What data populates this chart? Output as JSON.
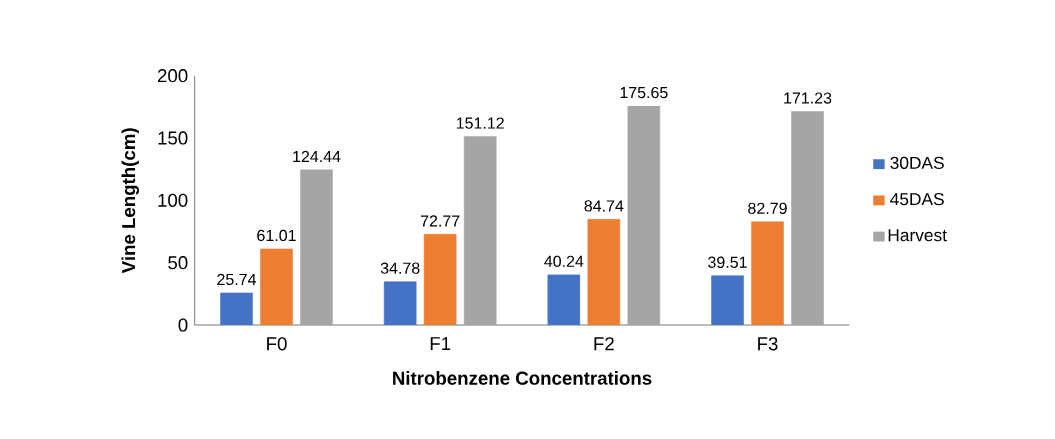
{
  "chart_data": {
    "type": "bar",
    "xlabel": "Nitrobenzene Concentrations",
    "ylabel": "Vine Length(cm)",
    "categories": [
      "F0",
      "F1",
      "F2",
      "F3"
    ],
    "series": [
      {
        "name": "30DAS",
        "color": "#4472c4",
        "values": [
          25.74,
          34.78,
          40.24,
          39.51
        ]
      },
      {
        "name": "45DAS",
        "color": "#ed7d31",
        "values": [
          61.01,
          72.77,
          84.74,
          82.79
        ]
      },
      {
        "name": "Harvest",
        "color": "#a5a5a5",
        "values": [
          124.44,
          151.12,
          175.65,
          171.23
        ]
      }
    ],
    "ylim": [
      0,
      200
    ],
    "yticks": [
      0,
      50,
      100,
      150,
      200
    ],
    "data_labels": true,
    "legend": "right",
    "grid": false
  }
}
